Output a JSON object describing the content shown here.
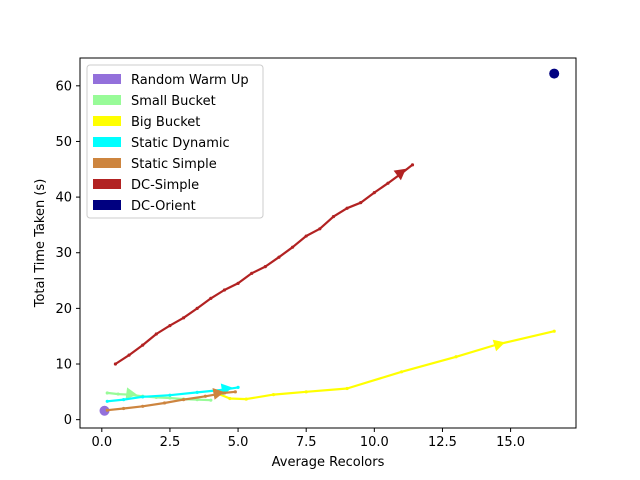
{
  "chart_data": {
    "type": "line",
    "title": "",
    "xlabel": "Average Recolors",
    "ylabel": "Total Time Taken (s)",
    "xlim": [
      -0.8,
      17.4
    ],
    "ylim": [
      -1.5,
      65.0
    ],
    "xticks": [
      0.0,
      2.5,
      5.0,
      7.5,
      10.0,
      12.5,
      15.0
    ],
    "xtick_labels": [
      "0.0",
      "2.5",
      "5.0",
      "7.5",
      "10.0",
      "12.5",
      "15.0"
    ],
    "yticks": [
      0,
      10,
      20,
      30,
      40,
      50,
      60
    ],
    "ytick_labels": [
      "0",
      "10",
      "20",
      "30",
      "40",
      "50",
      "60"
    ],
    "grid": false,
    "legend_position": "upper-left",
    "series": [
      {
        "name": "Random Warm Up",
        "color": "#9370db",
        "points": [
          [
            0.1,
            1.6
          ]
        ],
        "marker": "circle"
      },
      {
        "name": "Small Bucket",
        "color": "#98fb98",
        "points": [
          [
            0.2,
            4.8
          ],
          [
            0.6,
            4.6
          ],
          [
            1.0,
            4.5
          ],
          [
            1.5,
            4.2
          ],
          [
            2.0,
            4.0
          ],
          [
            2.5,
            3.9
          ],
          [
            3.0,
            3.7
          ],
          [
            3.5,
            3.6
          ],
          [
            4.0,
            3.5
          ]
        ],
        "arrow_at": [
          1.1,
          4.6
        ]
      },
      {
        "name": "Big Bucket",
        "color": "#ffff00",
        "points": [
          [
            4.3,
            4.6
          ],
          [
            4.7,
            3.8
          ],
          [
            5.3,
            3.7
          ],
          [
            6.3,
            4.5
          ],
          [
            7.5,
            5.0
          ],
          [
            9.0,
            5.6
          ],
          [
            11.0,
            8.6
          ],
          [
            13.0,
            11.3
          ],
          [
            14.5,
            13.5
          ],
          [
            16.6,
            15.9
          ]
        ],
        "arrow_at": [
          14.6,
          13.6
        ]
      },
      {
        "name": "Static Dynamic",
        "color": "#00ffff",
        "points": [
          [
            0.2,
            3.3
          ],
          [
            0.8,
            3.6
          ],
          [
            1.5,
            4.1
          ],
          [
            2.5,
            4.4
          ],
          [
            3.5,
            4.9
          ],
          [
            4.5,
            5.4
          ],
          [
            5.0,
            5.8
          ]
        ],
        "arrow_at": [
          4.6,
          5.6
        ]
      },
      {
        "name": "Static Simple",
        "color": "#cd853f",
        "points": [
          [
            0.2,
            1.7
          ],
          [
            0.8,
            2.0
          ],
          [
            1.5,
            2.4
          ],
          [
            2.3,
            3.0
          ],
          [
            3.0,
            3.6
          ],
          [
            3.8,
            4.2
          ],
          [
            4.5,
            4.8
          ],
          [
            4.9,
            5.0
          ]
        ],
        "arrow_at": [
          4.3,
          4.8
        ]
      },
      {
        "name": "DC-Simple",
        "color": "#b22222",
        "points": [
          [
            0.5,
            10.0
          ],
          [
            1.0,
            11.6
          ],
          [
            1.5,
            13.4
          ],
          [
            2.0,
            15.4
          ],
          [
            2.5,
            16.9
          ],
          [
            3.0,
            18.3
          ],
          [
            3.5,
            20.0
          ],
          [
            4.0,
            21.8
          ],
          [
            4.5,
            23.3
          ],
          [
            5.0,
            24.5
          ],
          [
            5.5,
            26.3
          ],
          [
            6.0,
            27.5
          ],
          [
            6.5,
            29.2
          ],
          [
            7.0,
            31.0
          ],
          [
            7.5,
            33.0
          ],
          [
            8.0,
            34.3
          ],
          [
            8.5,
            36.5
          ],
          [
            9.0,
            38.0
          ],
          [
            9.5,
            39.0
          ],
          [
            10.0,
            40.8
          ],
          [
            10.5,
            42.5
          ],
          [
            11.0,
            44.3
          ],
          [
            11.4,
            45.8
          ]
        ],
        "arrow_at": [
          11.0,
          44.5
        ]
      },
      {
        "name": "DC-Orient",
        "color": "#000080",
        "points": [
          [
            16.6,
            62.2
          ]
        ],
        "marker": "circle"
      }
    ]
  }
}
